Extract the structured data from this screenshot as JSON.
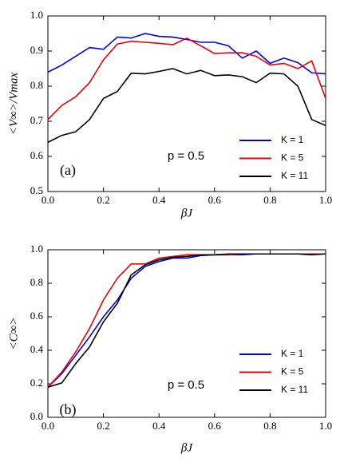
{
  "chart_data": [
    {
      "type": "line",
      "ylabel": "<V∞>/Vmax",
      "xlabel": "βJ",
      "annotations": [
        "p = 0.5",
        "(a)"
      ],
      "x": [
        0,
        0.05,
        0.1,
        0.15,
        0.2,
        0.25,
        0.3,
        0.35,
        0.4,
        0.45,
        0.5,
        0.55,
        0.6,
        0.65,
        0.7,
        0.75,
        0.8,
        0.85,
        0.9,
        0.95,
        1.0
      ],
      "series": [
        {
          "name": "K = 1",
          "color": "#0000ee",
          "values": [
            0.84,
            0.86,
            0.885,
            0.91,
            0.905,
            0.94,
            0.937,
            0.95,
            0.942,
            0.94,
            0.933,
            0.925,
            0.925,
            0.915,
            0.88,
            0.9,
            0.865,
            0.88,
            0.867,
            0.838,
            0.835
          ]
        },
        {
          "name": "K = 5",
          "color": "#ee0000",
          "values": [
            0.705,
            0.745,
            0.77,
            0.81,
            0.875,
            0.92,
            0.928,
            0.925,
            0.922,
            0.918,
            0.937,
            0.915,
            0.893,
            0.895,
            0.895,
            0.885,
            0.86,
            0.865,
            0.85,
            0.872,
            0.765
          ]
        },
        {
          "name": "K = 11",
          "color": "#000000",
          "values": [
            0.64,
            0.66,
            0.67,
            0.705,
            0.765,
            0.785,
            0.837,
            0.835,
            0.842,
            0.85,
            0.835,
            0.845,
            0.83,
            0.832,
            0.827,
            0.81,
            0.837,
            0.835,
            0.8,
            0.705,
            0.688
          ]
        }
      ],
      "xlim": [
        0,
        1
      ],
      "xticks": [
        {
          "value": 0,
          "label": "0.0"
        },
        0.2,
        0.4,
        0.6,
        0.8,
        {
          "value": 1,
          "label": "1.0"
        }
      ],
      "ylim": [
        0.5,
        1
      ],
      "yticks": [
        0.5,
        0.6,
        0.7,
        0.8,
        0.9,
        {
          "value": 1,
          "label": "1.0"
        }
      ]
    },
    {
      "type": "line",
      "ylabel": "<C∞>",
      "xlabel": "βJ",
      "annotations": [
        "p = 0.5",
        "(b)"
      ],
      "x": [
        0,
        0.05,
        0.1,
        0.15,
        0.2,
        0.25,
        0.3,
        0.35,
        0.4,
        0.45,
        0.5,
        0.55,
        0.6,
        0.65,
        0.7,
        0.75,
        0.8,
        0.85,
        0.9,
        0.95,
        1.0
      ],
      "series": [
        {
          "name": "K = 1",
          "color": "#0000ee",
          "values": [
            0.18,
            0.26,
            0.37,
            0.48,
            0.6,
            0.7,
            0.83,
            0.9,
            0.93,
            0.95,
            0.95,
            0.965,
            0.97,
            0.97,
            0.97,
            0.975,
            0.975,
            0.975,
            0.975,
            0.975,
            0.975
          ]
        },
        {
          "name": "K = 5",
          "color": "#ee0000",
          "values": [
            0.18,
            0.27,
            0.39,
            0.53,
            0.7,
            0.83,
            0.915,
            0.915,
            0.95,
            0.96,
            0.97,
            0.97,
            0.97,
            0.97,
            0.975,
            0.975,
            0.975,
            0.975,
            0.975,
            0.975,
            0.975
          ]
        },
        {
          "name": "K = 11",
          "color": "#000000",
          "values": [
            0.18,
            0.205,
            0.32,
            0.42,
            0.57,
            0.68,
            0.85,
            0.91,
            0.94,
            0.955,
            0.96,
            0.97,
            0.97,
            0.975,
            0.975,
            0.975,
            0.975,
            0.975,
            0.975,
            0.97,
            0.975
          ]
        }
      ],
      "xlim": [
        0,
        1
      ],
      "xticks": [
        {
          "value": 0,
          "label": "0.0"
        },
        0.2,
        0.4,
        0.6,
        0.8,
        {
          "value": 1,
          "label": "1.0"
        }
      ],
      "ylim": [
        0,
        1
      ],
      "yticks": [
        {
          "value": 0,
          "label": "0.0"
        },
        0.2,
        0.4,
        0.6,
        0.8,
        {
          "value": 1,
          "label": "1.0"
        }
      ]
    }
  ]
}
